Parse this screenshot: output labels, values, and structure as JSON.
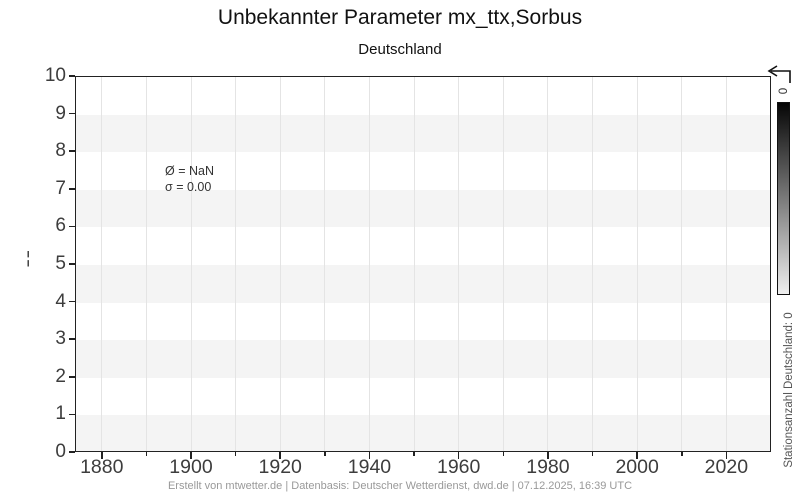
{
  "header": {
    "title": "Unbekannter Parameter mx_ttx,Sorbus",
    "subtitle": "Deutschland"
  },
  "plot": {
    "annotation_line1": "Ø = NaN",
    "annotation_line2": "σ = 0.00",
    "y_axis_label_fragment": "¦"
  },
  "colorbar": {
    "tick_label_top": "0",
    "axis_label": "Stationsanzahl Deutschland: 0"
  },
  "footer": {
    "credit": "Erstellt von mtwetter.de | Datenbasis: Deutscher Wetterdienst, dwd.de | 07.12.2025, 16:39 UTC"
  },
  "chart_data": {
    "type": "line",
    "title": "Unbekannter Parameter mx_ttx,Sorbus",
    "subtitle": "Deutschland",
    "series": [],
    "xlabel": "",
    "ylabel": "",
    "xlim": [
      1874,
      2030
    ],
    "ylim": [
      0,
      10
    ],
    "x_ticks_major": [
      1880,
      1900,
      1920,
      1940,
      1960,
      1980,
      2000,
      2020
    ],
    "x_ticks_minor": [
      1890,
      1910,
      1930,
      1950,
      1970,
      1990,
      2010
    ],
    "y_ticks": [
      0,
      1,
      2,
      3,
      4,
      5,
      6,
      7,
      8,
      9,
      10
    ],
    "shaded_band_pairs": [
      [
        0,
        1
      ],
      [
        2,
        3
      ],
      [
        4,
        5
      ],
      [
        6,
        7
      ],
      [
        8,
        9
      ]
    ],
    "grid_x_years_step": 10,
    "legend": null,
    "annotations": [
      "Ø = NaN",
      "σ = 0.00"
    ],
    "mean": "NaN",
    "std": "0.00",
    "station_count": 0,
    "colorbar": {
      "label": "Stationsanzahl Deutschland: 0",
      "top_tick": "0",
      "gradient_top": "#050505",
      "gradient_bottom": "#efefef"
    }
  },
  "colors": {
    "band": "#f4f4f4",
    "gridline": "#e4e4e4",
    "spine": "#222222",
    "tick_label": "#3d3d3d",
    "title": "#111111",
    "annotation": "#333333",
    "side_label": "#555555",
    "footer": "#999999"
  }
}
